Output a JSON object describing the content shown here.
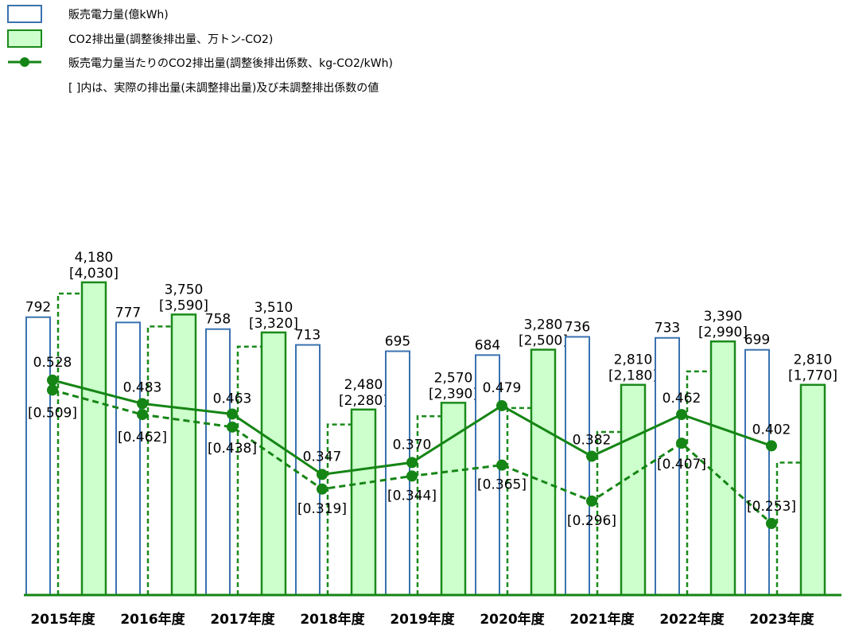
{
  "legend": {
    "sales": "販売電力量(億kWh)",
    "co2": "CO2排出量(調整後排出量、万トン-CO2)",
    "intensity": "販売電力量当たりのCO2排出量(調整後排出係数、kg-CO2/kWh)",
    "note": "[ ]内は、実際の排出量(未調整排出量)及び未調整排出係数の値"
  },
  "colors": {
    "sales_stroke": "#3a72b0",
    "co2_fill": "#ccffcc",
    "co2_stroke": "#1a8a1a",
    "line": "#158515",
    "axis": "#158515"
  },
  "chart_data": {
    "type": "bar",
    "categories": [
      "2015年度",
      "2016年度",
      "2017年度",
      "2018年度",
      "2019年度",
      "2020年度",
      "2021年度",
      "2022年度",
      "2023年度"
    ],
    "series": [
      {
        "name": "販売電力量(億kWh)",
        "values": [
          792,
          777,
          758,
          713,
          695,
          684,
          736,
          733,
          699
        ],
        "labels": [
          "792",
          "777",
          "758",
          "713",
          "695",
          "684",
          "736",
          "733",
          "699"
        ]
      },
      {
        "name": "CO2排出量(調整後排出量、万トン-CO2)",
        "values": [
          4180,
          3750,
          3510,
          2480,
          2570,
          3280,
          2810,
          3390,
          2810
        ],
        "labels": [
          "4,180",
          "3,750",
          "3,510",
          "2,480",
          "2,570",
          "3,280",
          "2,810",
          "3,390",
          "2,810"
        ]
      },
      {
        "name": "未調整排出量",
        "values": [
          4030,
          3590,
          3320,
          2280,
          2390,
          2500,
          2180,
          2990,
          1770
        ],
        "labels": [
          "[4,030]",
          "[3,590]",
          "[3,320]",
          "[2,280]",
          "[2,390]",
          "[2,500]",
          "[2,180]",
          "[2,990]",
          "[1,770]"
        ]
      },
      {
        "name": "販売電力量当たりのCO2排出量(調整後排出係数、kg-CO2/kWh)",
        "values": [
          0.528,
          0.483,
          0.463,
          0.347,
          0.37,
          0.479,
          0.382,
          0.462,
          0.402
        ],
        "labels": [
          "0.528",
          "0.483",
          "0.463",
          "0.347",
          "0.370",
          "0.479",
          "0.382",
          "0.462",
          "0.402"
        ]
      },
      {
        "name": "未調整排出係数",
        "values": [
          0.509,
          0.462,
          0.438,
          0.319,
          0.344,
          0.365,
          0.296,
          0.407,
          0.253
        ],
        "labels": [
          "[0.509]",
          "[0.462]",
          "[0.438]",
          "[0.319]",
          "[0.344]",
          "[0.365]",
          "[0.296]",
          "[0.407]",
          "[0.253]"
        ]
      }
    ],
    "grid": false
  }
}
